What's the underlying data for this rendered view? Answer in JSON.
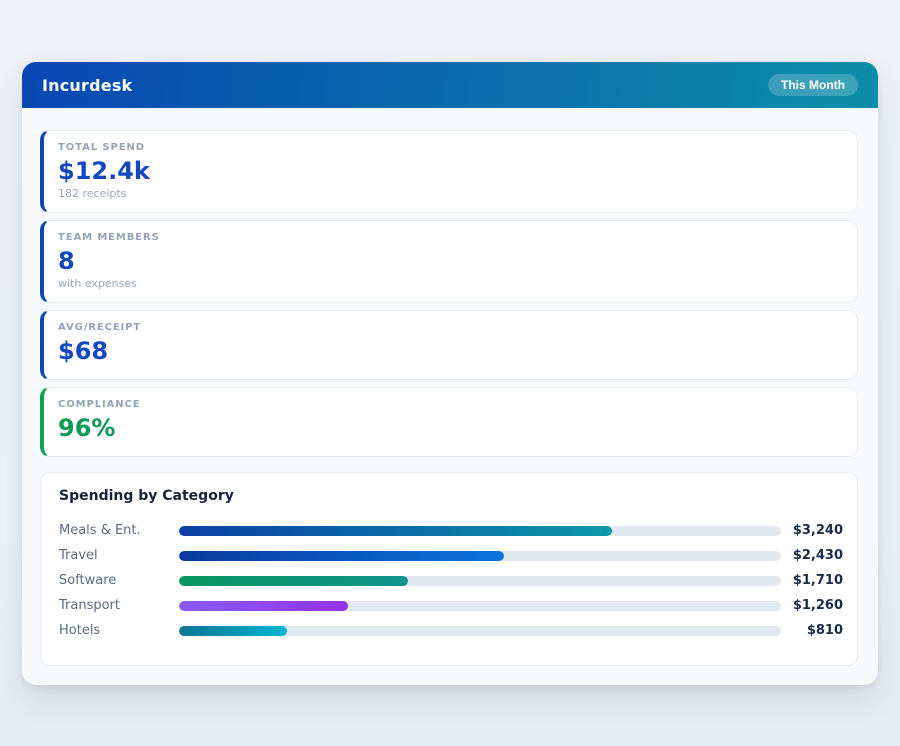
{
  "page": {
    "background": "#edf1f7"
  },
  "header": {
    "title": "Incurdesk",
    "badge_label": "This Month",
    "gradient_start": "#0847b2",
    "gradient_end": "#0d8fa8"
  },
  "stats": [
    {
      "label": "TOTAL SPEND",
      "value": "$12.4k",
      "sub": "182 receipts",
      "accent": "#0b49b5",
      "value_color": "#1348c0"
    },
    {
      "label": "TEAM MEMBERS",
      "value": "8",
      "sub": "with expenses",
      "accent": "#0b49b5",
      "value_color": "#1348c0"
    },
    {
      "label": "AVG/RECEIPT",
      "value": "$68",
      "sub": "",
      "accent": "#0b49b5",
      "value_color": "#1348c0"
    },
    {
      "label": "COMPLIANCE",
      "value": "96%",
      "sub": "",
      "accent": "#0f9d58",
      "value_color": "#0d9b57"
    }
  ],
  "chart_data": {
    "type": "bar",
    "orientation": "horizontal",
    "title": "Spending by Category",
    "categories": [
      "Meals & Ent.",
      "Travel",
      "Software",
      "Transport",
      "Hotels"
    ],
    "values": [
      3240,
      2430,
      1710,
      1260,
      810
    ],
    "value_labels": [
      "$3,240",
      "$2,430",
      "$1,710",
      "$1,260",
      "$810"
    ],
    "xlim": [
      0,
      4500
    ],
    "percents": [
      72,
      54,
      38,
      28,
      18
    ],
    "track_color": "#e2e8f0",
    "bar_gradients": [
      [
        "#0b3fa6",
        "#0d98a8"
      ],
      [
        "#0a3a9e",
        "#0b74dc"
      ],
      [
        "#06975f",
        "#12948c"
      ],
      [
        "#8b5cf6",
        "#9333ea"
      ],
      [
        "#0e7490",
        "#06b6d4"
      ]
    ],
    "legend": false,
    "grid": false
  }
}
